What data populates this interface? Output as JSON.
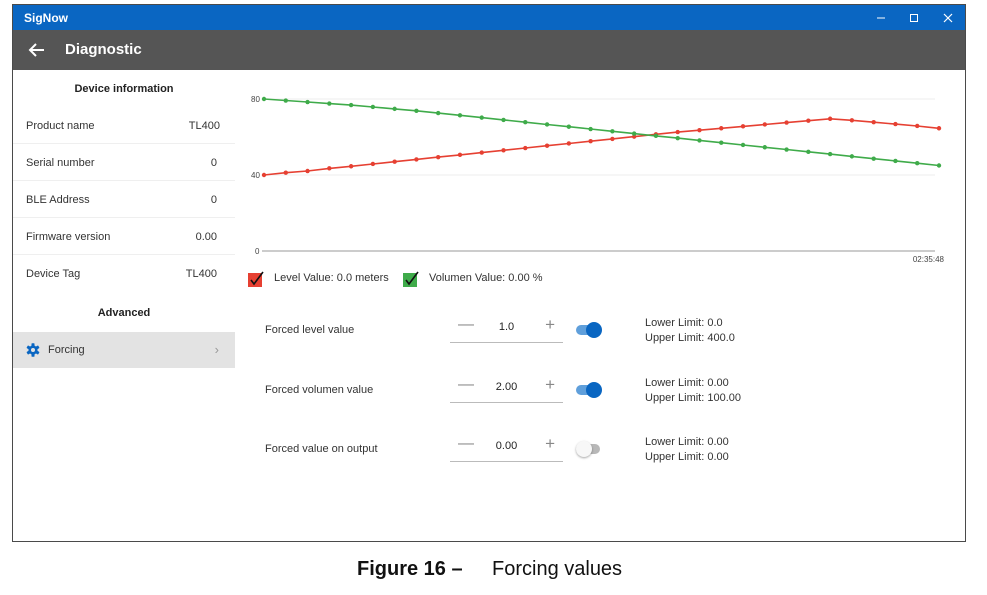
{
  "window": {
    "app_title": "SigNow"
  },
  "header": {
    "title": "Diagnostic"
  },
  "sidebar": {
    "device_info_title": "Device information",
    "items": [
      {
        "label": "Product name",
        "value": "TL400"
      },
      {
        "label": "Serial number",
        "value": "0"
      },
      {
        "label": "BLE Address",
        "value": "0"
      },
      {
        "label": "Firmware version",
        "value": "0.00"
      },
      {
        "label": "Device Tag",
        "value": "TL400"
      }
    ],
    "advanced_title": "Advanced",
    "forcing_label": "Forcing"
  },
  "chart_data": {
    "type": "line",
    "ylim": [
      0,
      80
    ],
    "y_ticks": [
      "80",
      "40",
      "0"
    ],
    "x_tick": "02:35:48",
    "grid": true,
    "series": [
      {
        "name": "Level Value",
        "color": "#e64032",
        "values": [
          40,
          41.2,
          42.1,
          43.5,
          44.6,
          45.8,
          47,
          48.2,
          49.4,
          50.6,
          51.8,
          53,
          54.2,
          55.4,
          56.6,
          57.8,
          59,
          60.2,
          61.4,
          62.6,
          63.6,
          64.6,
          65.6,
          66.6,
          67.6,
          68.6,
          69.6,
          68.8,
          67.8,
          66.8,
          65.8,
          64.6
        ]
      },
      {
        "name": "Volumen Value",
        "color": "#3fab4a",
        "values": [
          80,
          79.2,
          78.4,
          77.6,
          76.8,
          75.8,
          74.8,
          73.8,
          72.6,
          71.4,
          70.2,
          69,
          67.8,
          66.6,
          65.4,
          64.2,
          63,
          61.8,
          60.6,
          59.4,
          58.2,
          57,
          55.8,
          54.6,
          53.4,
          52.2,
          51,
          49.8,
          48.6,
          47.4,
          46.2,
          45
        ]
      }
    ]
  },
  "legend": [
    {
      "text": "Level Value: 0.0 meters",
      "color": "#e64032"
    },
    {
      "text": "Volumen Value: 0.00 %",
      "color": "#3fab4a"
    }
  ],
  "forced": [
    {
      "label": "Forced level value",
      "value": "1.0",
      "enabled": true,
      "lower": "Lower Limit: 0.0",
      "upper": "Upper Limit: 400.0"
    },
    {
      "label": "Forced volumen value",
      "value": "2.00",
      "enabled": true,
      "lower": "Lower Limit: 0.00",
      "upper": "Upper Limit: 100.00"
    },
    {
      "label": "Forced value on output",
      "value": "0.00",
      "enabled": false,
      "lower": "Lower Limit: 0.00",
      "upper": "Upper Limit: 0.00"
    }
  ],
  "stepper_symbols": {
    "minus": "—",
    "plus": "+"
  },
  "caption": {
    "number": "Figure 16 –",
    "text": "Forcing values"
  },
  "colors": {
    "titlebar": "#0a66c2",
    "header": "#555555",
    "toggle_on": "#0a66c2"
  }
}
